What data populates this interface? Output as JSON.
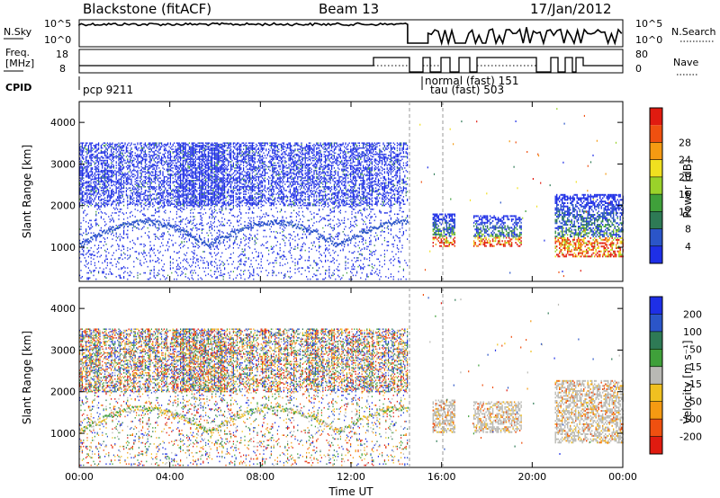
{
  "header": {
    "station": "Blackstone (fitACF)",
    "beam": "Beam 13",
    "date": "17/Jan/2012"
  },
  "panels": {
    "nsky_label": "N.Sky",
    "nsky_ticks": [
      "10^5",
      "10^0"
    ],
    "nsearch_label": "N.Search",
    "nsearch_ticks": [
      "10^5",
      "10^0"
    ],
    "freq_label": "Freq.",
    "freq_unit": "[MHz]",
    "freq_ticks": [
      "18",
      "8"
    ],
    "nave_label": "Nave",
    "nave_ticks": [
      "80",
      "0"
    ],
    "cpid_label": "CPID",
    "cpid_entries": [
      "pcp 9211",
      "normal (fast) 151",
      "tau (fast) 503"
    ]
  },
  "colors": {
    "power": [
      "#1e2fe6",
      "#2b55c8",
      "#2e7a55",
      "#3fa03a",
      "#9ad22a",
      "#f0e020",
      "#f59a12",
      "#ef5010",
      "#e01b10"
    ],
    "velocity": [
      "#1e2fe6",
      "#2b55c8",
      "#2e7a55",
      "#3fa03a",
      "#b9b9b4",
      "#f0c020",
      "#f59a12",
      "#ef5010",
      "#e01b10"
    ]
  },
  "chart_data": [
    {
      "type": "heatmap",
      "title": "Power",
      "ylabel": "Slant Range [km]",
      "ylim": [
        180,
        4500
      ],
      "y_ticks": [
        1000,
        2000,
        3000,
        4000
      ],
      "x_ticks": [
        "00:00",
        "04:00",
        "08:00",
        "12:00",
        "16:00",
        "20:00",
        "00:00"
      ],
      "colorbar_label": "Power [dB]",
      "colorbar_ticks": [
        4,
        8,
        12,
        16,
        20,
        24,
        28
      ],
      "regions": [
        {
          "x_start_h": 0.0,
          "x_end_h": 14.5,
          "range_km": [
            1000,
            3550
          ],
          "dominant": "blue"
        },
        {
          "x_start_h": 15.6,
          "x_end_h": 16.6,
          "range_km": [
            1050,
            1850
          ],
          "dominant": "mixed"
        },
        {
          "x_start_h": 17.4,
          "x_end_h": 19.5,
          "range_km": [
            1050,
            1800
          ],
          "dominant": "mixed"
        },
        {
          "x_start_h": 21.0,
          "x_end_h": 24.0,
          "range_km": [
            800,
            2300
          ],
          "dominant": "mixed"
        }
      ]
    },
    {
      "type": "heatmap",
      "title": "Velocity",
      "ylabel": "Slant Range [km]",
      "xlabel": "Time UT",
      "ylim": [
        180,
        4500
      ],
      "y_ticks": [
        1000,
        2000,
        3000,
        4000
      ],
      "x_ticks": [
        "00:00",
        "04:00",
        "08:00",
        "12:00",
        "16:00",
        "20:00",
        "00:00"
      ],
      "colorbar_label": "Velocity [m s⁻¹]",
      "colorbar_ticks": [
        200,
        100,
        50,
        15,
        -15,
        -50,
        -100,
        -200
      ],
      "regions": [
        {
          "x_start_h": 0.0,
          "x_end_h": 14.5,
          "range_km": [
            1000,
            3550
          ],
          "dominant": "mixed"
        },
        {
          "x_start_h": 15.6,
          "x_end_h": 16.6,
          "range_km": [
            1050,
            1850
          ],
          "dominant": "gray"
        },
        {
          "x_start_h": 17.4,
          "x_end_h": 19.5,
          "range_km": [
            1050,
            1800
          ],
          "dominant": "gray"
        },
        {
          "x_start_h": 21.0,
          "x_end_h": 24.0,
          "range_km": [
            800,
            2300
          ],
          "dominant": "gray"
        }
      ]
    }
  ]
}
